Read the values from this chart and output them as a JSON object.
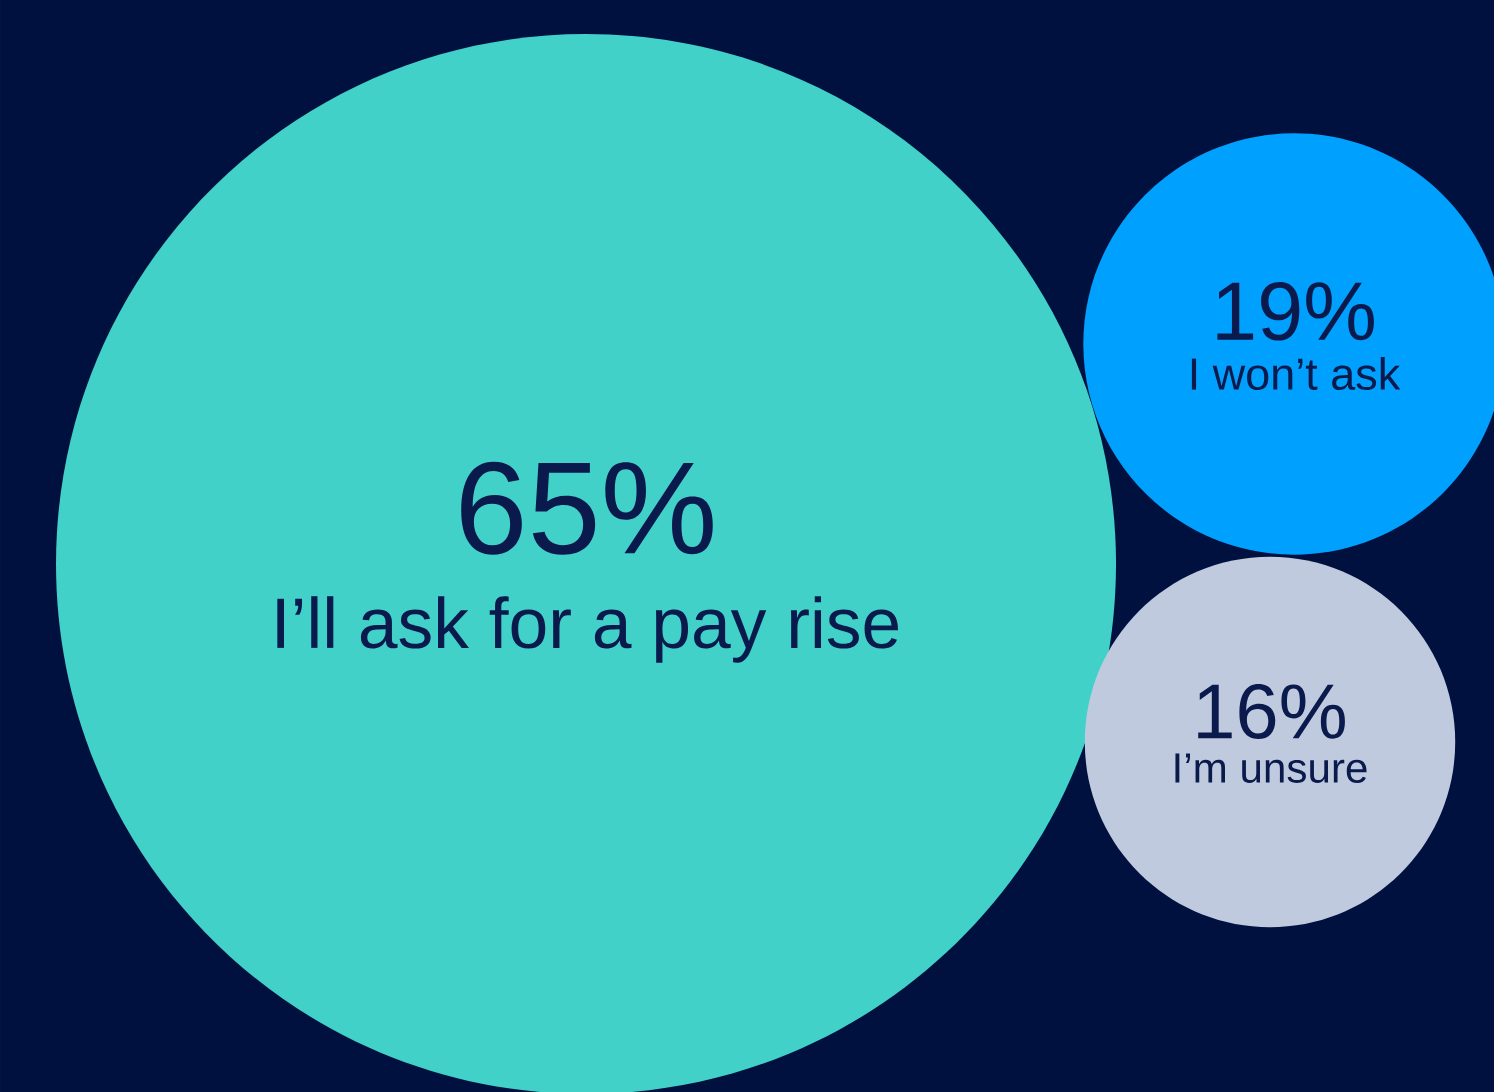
{
  "chart_data": {
    "type": "other",
    "categories": [
      "I’ll ask for a pay rise",
      "I won’t ask",
      "I’m unsure"
    ],
    "values": [
      65,
      19,
      16
    ],
    "value_labels": [
      "65%",
      "19%",
      "16%"
    ],
    "colors": [
      "#41d1c8",
      "#00a0ff",
      "#c0cadf"
    ]
  }
}
